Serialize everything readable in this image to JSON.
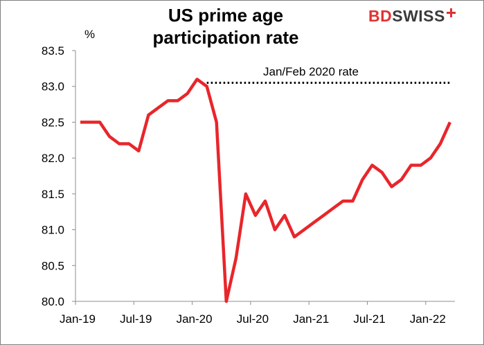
{
  "title_lines": [
    "US prime age",
    "participation rate"
  ],
  "logo": {
    "part1": "BD",
    "part2": "SWISS",
    "color_red": "#e03131",
    "color_dark": "#3a3a3a"
  },
  "chart_data": {
    "type": "line",
    "title": "US prime age participation rate",
    "ylabel": "%",
    "ylim": [
      80.0,
      83.5
    ],
    "yticks": [
      "80.0",
      "80.5",
      "81.0",
      "81.5",
      "82.0",
      "82.5",
      "83.0",
      "83.5"
    ],
    "xticks": [
      "Jan-19",
      "Jul-19",
      "Jan-20",
      "Jul-20",
      "Jan-21",
      "Jul-21",
      "Jan-22"
    ],
    "grid": false,
    "series": [
      {
        "color": "#e8262b",
        "x": [
          "2019-01",
          "2019-02",
          "2019-03",
          "2019-04",
          "2019-05",
          "2019-06",
          "2019-07",
          "2019-08",
          "2019-09",
          "2019-10",
          "2019-11",
          "2019-12",
          "2020-01",
          "2020-02",
          "2020-03",
          "2020-04",
          "2020-05",
          "2020-06",
          "2020-07",
          "2020-08",
          "2020-09",
          "2020-10",
          "2020-11",
          "2020-12",
          "2021-01",
          "2021-02",
          "2021-03",
          "2021-04",
          "2021-05",
          "2021-06",
          "2021-07",
          "2021-08",
          "2021-09",
          "2021-10",
          "2021-11",
          "2021-12",
          "2022-01",
          "2022-02",
          "2022-03"
        ],
        "values": [
          82.5,
          82.5,
          82.5,
          82.3,
          82.2,
          82.2,
          82.1,
          82.6,
          82.7,
          82.8,
          82.8,
          82.9,
          83.1,
          83.0,
          82.5,
          80.0,
          80.6,
          81.5,
          81.2,
          81.4,
          81.0,
          81.2,
          80.9,
          81.0,
          81.1,
          81.2,
          81.3,
          81.4,
          81.4,
          81.7,
          81.9,
          81.8,
          81.6,
          81.7,
          81.9,
          81.9,
          82.0,
          82.2,
          82.5
        ]
      }
    ],
    "reference_line": {
      "label": "Jan/Feb 2020 rate",
      "value": 83.05,
      "from": "2020-02",
      "to": "2022-03",
      "style": "dotted",
      "color": "#000000"
    }
  }
}
